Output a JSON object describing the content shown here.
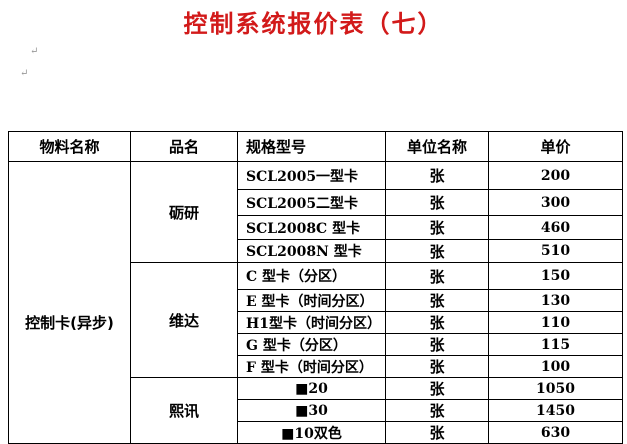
{
  "title": "控制系统报价表（七）",
  "headers": [
    "物料名称",
    "品名",
    "规格型号",
    "单位名称",
    "单价"
  ],
  "material": "控制卡(异步)",
  "groups": [
    {
      "brand": "砺研",
      "items": [
        [
          "SCL2005一型卡",
          "张",
          "200"
        ],
        [
          "SCL2005二型卡",
          "张",
          "300"
        ],
        [
          "SCL2008C 型卡",
          "张",
          "460"
        ],
        [
          "SCL2008N 型卡",
          "张",
          "510"
        ]
      ]
    },
    {
      "brand": "维达",
      "items": [
        [
          "C 型卡（分区）",
          "张",
          "150"
        ],
        [
          "E 型卡（时间分区）",
          "张",
          "130"
        ],
        [
          "H1型卡（时间分区）",
          "张",
          "110"
        ],
        [
          "G 型卡（分区）",
          "张",
          "115"
        ],
        [
          "F 型卡（时间分区）",
          "张",
          "100"
        ]
      ]
    },
    {
      "brand": "熙讯",
      "items": [
        [
          "■20",
          "张",
          "1050"
        ],
        [
          "■30",
          "张",
          "1450"
        ],
        [
          "■10双色",
          "张",
          "630"
        ]
      ]
    }
  ]
}
